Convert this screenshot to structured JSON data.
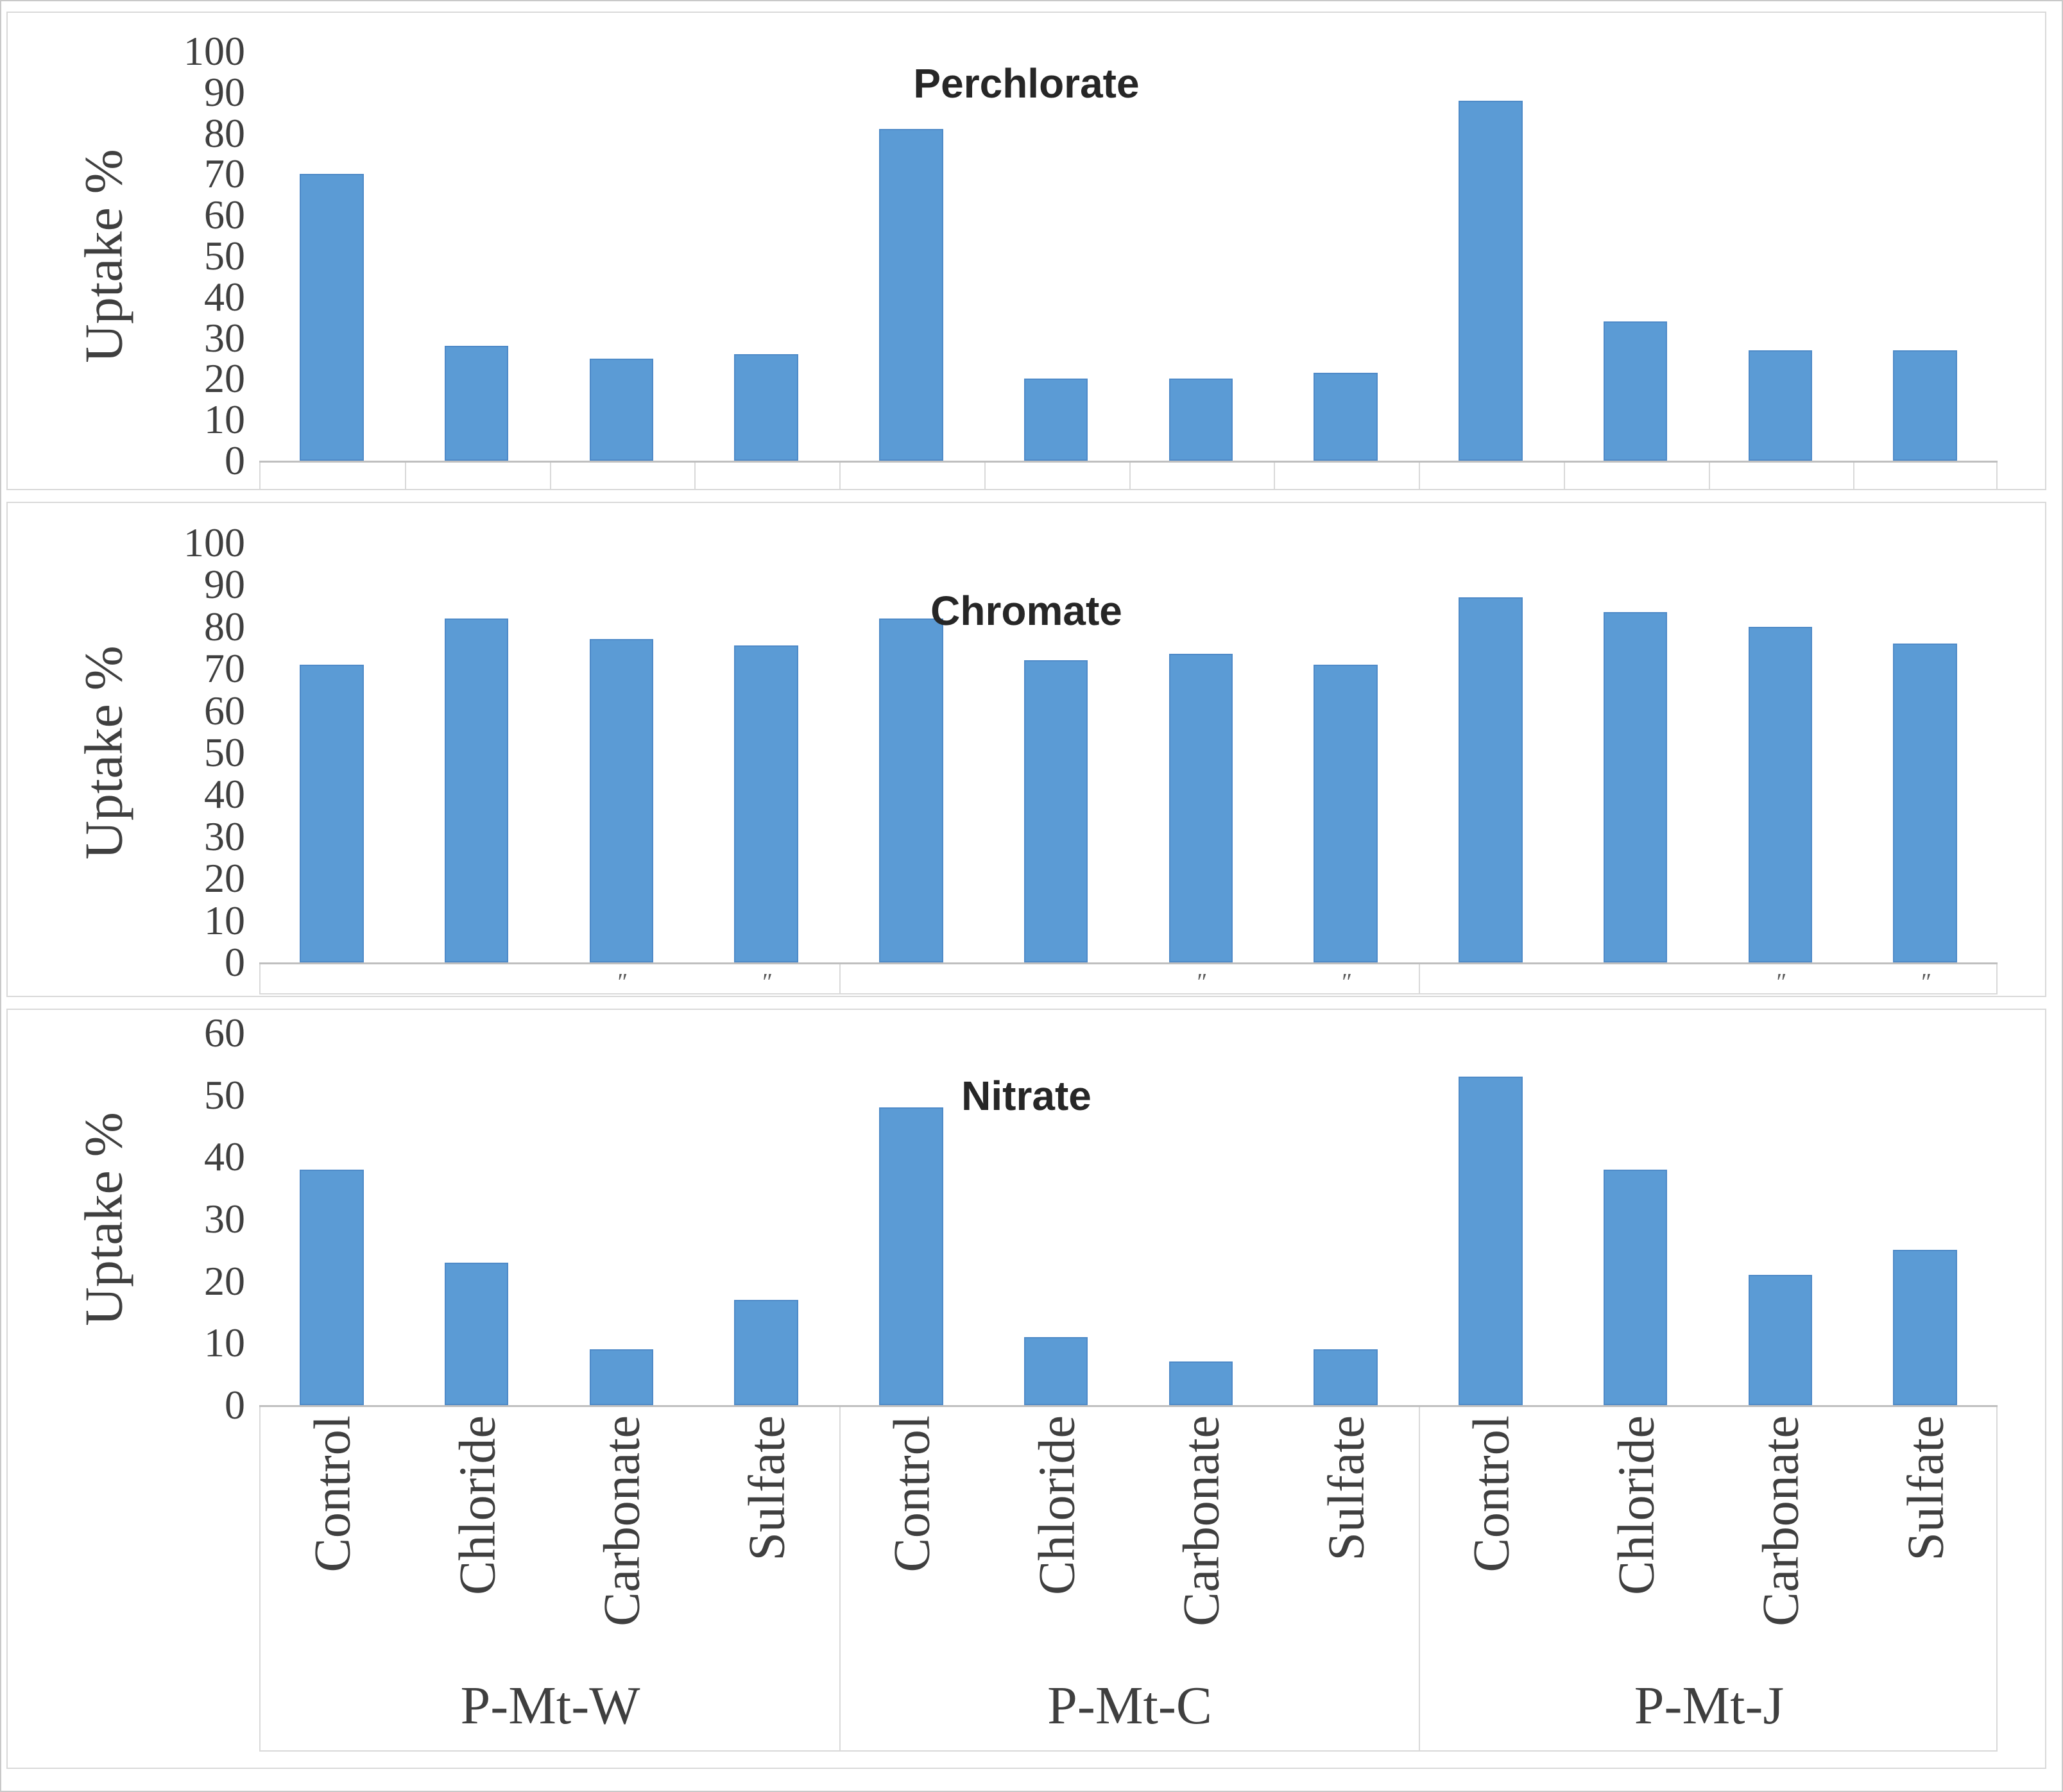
{
  "figure": {
    "kind": "stacked-triple-bar-chart-figure",
    "bar_color": "#5b9bd5",
    "bar_border_color": "#4e8ac8",
    "axis_line_color": "#bfbfbf",
    "frame_color": "#d9d9d9",
    "text_color": "#3f3f3f",
    "clipped_label_mark_glyph": "″",
    "groups": [
      "P-Mt-W",
      "P-Mt-C",
      "P-Mt-J"
    ],
    "categories": [
      "Control",
      "Chloride",
      "Carbonate",
      "Sulfate"
    ]
  },
  "chart_data": [
    {
      "type": "bar",
      "title": "Perchlorate",
      "ylabel": "Uptake %",
      "ylim": [
        0,
        100
      ],
      "yticks": [
        0,
        10,
        20,
        30,
        40,
        50,
        60,
        70,
        80,
        90,
        100
      ],
      "grid": false,
      "legend": "none",
      "categories": [
        "Control",
        "Chloride",
        "Carbonate",
        "Sulfate"
      ],
      "group_labels": [
        "P-Mt-W",
        "P-Mt-C",
        "P-Mt-J"
      ],
      "series": [
        {
          "name": "P-Mt-W",
          "values": [
            70,
            28,
            25,
            26
          ]
        },
        {
          "name": "P-Mt-C",
          "values": [
            81,
            20,
            20,
            21.5
          ]
        },
        {
          "name": "P-Mt-J",
          "values": [
            88,
            34,
            27,
            27
          ]
        }
      ],
      "category_axis_style": "empty-cell-per-bar"
    },
    {
      "type": "bar",
      "title": "Chromate",
      "ylabel": "Uptake %",
      "ylim": [
        0,
        100
      ],
      "yticks": [
        0,
        10,
        20,
        30,
        40,
        50,
        60,
        70,
        80,
        90,
        100
      ],
      "grid": false,
      "legend": "none",
      "categories": [
        "Control",
        "Chloride",
        "Carbonate",
        "Sulfate"
      ],
      "group_labels": [
        "P-Mt-W",
        "P-Mt-C",
        "P-Mt-J"
      ],
      "series": [
        {
          "name": "P-Mt-W",
          "values": [
            71,
            82,
            77,
            75.5
          ]
        },
        {
          "name": "P-Mt-C",
          "values": [
            82,
            72,
            73.5,
            71
          ]
        },
        {
          "name": "P-Mt-J",
          "values": [
            87,
            83.5,
            80,
            76
          ]
        }
      ],
      "category_axis_style": "empty-cell-per-group-with-clipped-label-tops",
      "clipped_mark_category_indexes": [
        2,
        3
      ]
    },
    {
      "type": "bar",
      "title": "Nitrate",
      "ylabel": "Uptake %",
      "ylim": [
        0,
        60
      ],
      "yticks": [
        0,
        10,
        20,
        30,
        40,
        50,
        60
      ],
      "grid": false,
      "legend": "none",
      "categories": [
        "Control",
        "Chloride",
        "Carbonate",
        "Sulfate"
      ],
      "group_labels": [
        "P-Mt-W",
        "P-Mt-C",
        "P-Mt-J"
      ],
      "series": [
        {
          "name": "P-Mt-W",
          "values": [
            38,
            23,
            9,
            17
          ]
        },
        {
          "name": "P-Mt-C",
          "values": [
            48,
            11,
            7,
            9
          ]
        },
        {
          "name": "P-Mt-J",
          "values": [
            53,
            38,
            21,
            25
          ]
        }
      ],
      "category_axis_style": "rotated-category-labels-with-group-labels"
    }
  ]
}
